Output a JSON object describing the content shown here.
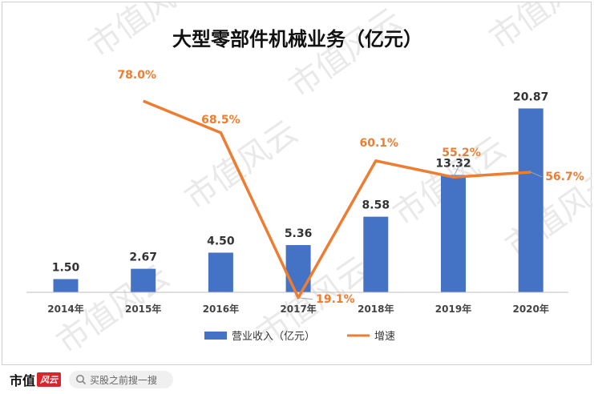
{
  "chart_data": {
    "type": "bar+line",
    "title": "大型零部件机械业务（亿元）",
    "categories": [
      "2014年",
      "2015年",
      "2016年",
      "2017年",
      "2018年",
      "2019年",
      "2020年"
    ],
    "series": [
      {
        "name": "营业收入（亿元）",
        "type": "bar",
        "color": "#4472c4",
        "values": [
          1.5,
          2.67,
          4.5,
          5.36,
          8.58,
          13.32,
          20.87
        ],
        "labels": [
          "1.50",
          "2.67",
          "4.50",
          "5.36",
          "8.58",
          "13.32",
          "20.87"
        ]
      },
      {
        "name": "增速",
        "type": "line",
        "color": "#ed7d31",
        "values": [
          null,
          78.0,
          68.5,
          19.1,
          60.1,
          55.2,
          56.7
        ],
        "labels": [
          null,
          "78.0%",
          "68.5%",
          "19.1%",
          "60.1%",
          "55.2%",
          "56.7%"
        ]
      }
    ],
    "legend_position": "bottom",
    "grid": false
  },
  "watermark": "市值风云",
  "footer": {
    "logo_text": "市值",
    "logo_mark": "风云",
    "search_placeholder": "买股之前搜一搜",
    "search_icon": "search-icon"
  }
}
